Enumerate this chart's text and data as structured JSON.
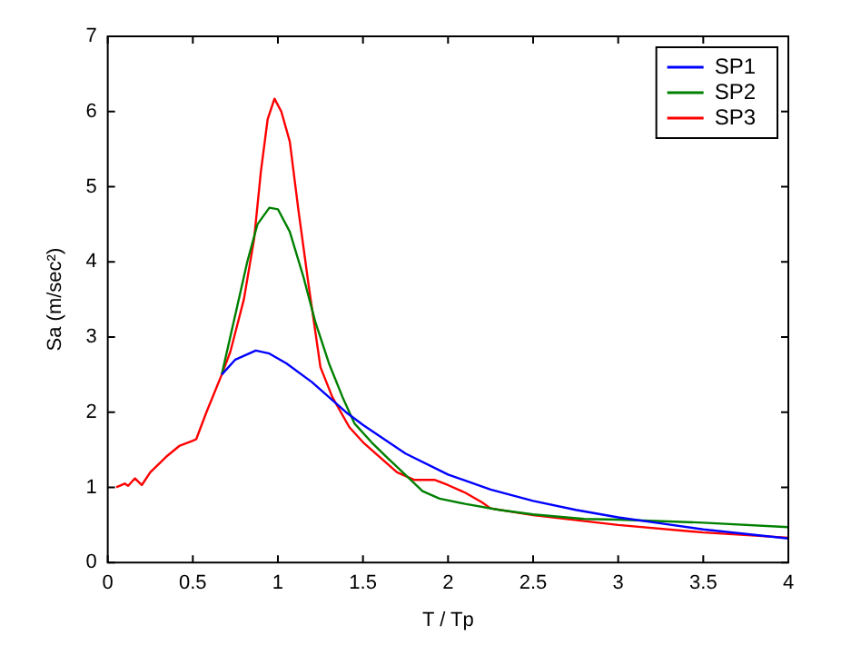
{
  "chart_data": {
    "type": "line",
    "xlabel": "T / Tp",
    "ylabel": "Sa (m/sec²)",
    "xlim": [
      0,
      4
    ],
    "ylim": [
      0,
      7
    ],
    "xticks": [
      0,
      0.5,
      1,
      1.5,
      2,
      2.5,
      3,
      3.5,
      4
    ],
    "yticks": [
      0,
      1,
      2,
      3,
      4,
      5,
      6,
      7
    ],
    "grid": false,
    "legend": "top right",
    "marker": "none",
    "line_style": "solid",
    "series": [
      {
        "name": "SP1",
        "color": "#0000ff",
        "x": [
          0.67,
          0.75,
          0.87,
          0.95,
          1.05,
          1.2,
          1.4,
          1.5,
          1.75,
          2.0,
          2.25,
          2.5,
          2.75,
          3.0,
          3.25,
          3.5,
          3.75,
          4.0
        ],
        "values": [
          2.5,
          2.7,
          2.82,
          2.78,
          2.65,
          2.4,
          2.0,
          1.83,
          1.45,
          1.17,
          0.97,
          0.82,
          0.7,
          0.6,
          0.52,
          0.44,
          0.38,
          0.32
        ]
      },
      {
        "name": "SP2",
        "color": "#008000",
        "x": [
          0.67,
          0.75,
          0.82,
          0.88,
          0.95,
          1.0,
          1.07,
          1.15,
          1.22,
          1.3,
          1.38,
          1.45,
          1.55,
          1.65,
          1.78,
          1.85,
          1.95,
          2.1,
          2.3,
          2.5,
          2.8,
          3.0,
          3.5,
          4.0
        ],
        "values": [
          2.5,
          3.3,
          4.0,
          4.5,
          4.72,
          4.7,
          4.4,
          3.8,
          3.2,
          2.65,
          2.2,
          1.85,
          1.6,
          1.38,
          1.1,
          0.95,
          0.85,
          0.78,
          0.7,
          0.64,
          0.58,
          0.57,
          0.53,
          0.47
        ]
      },
      {
        "name": "SP3",
        "color": "#ff0000",
        "x": [
          0.05,
          0.1,
          0.12,
          0.16,
          0.2,
          0.25,
          0.35,
          0.42,
          0.5,
          0.52,
          0.58,
          0.67,
          0.72,
          0.8,
          0.86,
          0.9,
          0.94,
          0.98,
          1.02,
          1.07,
          1.12,
          1.18,
          1.25,
          1.32,
          1.42,
          1.5,
          1.6,
          1.7,
          1.8,
          1.92,
          2.0,
          2.1,
          2.2,
          2.25,
          2.5,
          3.0,
          3.5,
          4.0
        ],
        "values": [
          1.0,
          1.05,
          1.02,
          1.12,
          1.03,
          1.2,
          1.42,
          1.55,
          1.62,
          1.64,
          2.0,
          2.5,
          2.8,
          3.5,
          4.3,
          5.2,
          5.9,
          6.17,
          6.0,
          5.6,
          4.7,
          3.7,
          2.6,
          2.2,
          1.8,
          1.6,
          1.4,
          1.2,
          1.1,
          1.1,
          1.03,
          0.93,
          0.8,
          0.72,
          0.63,
          0.5,
          0.4,
          0.33
        ]
      }
    ]
  }
}
